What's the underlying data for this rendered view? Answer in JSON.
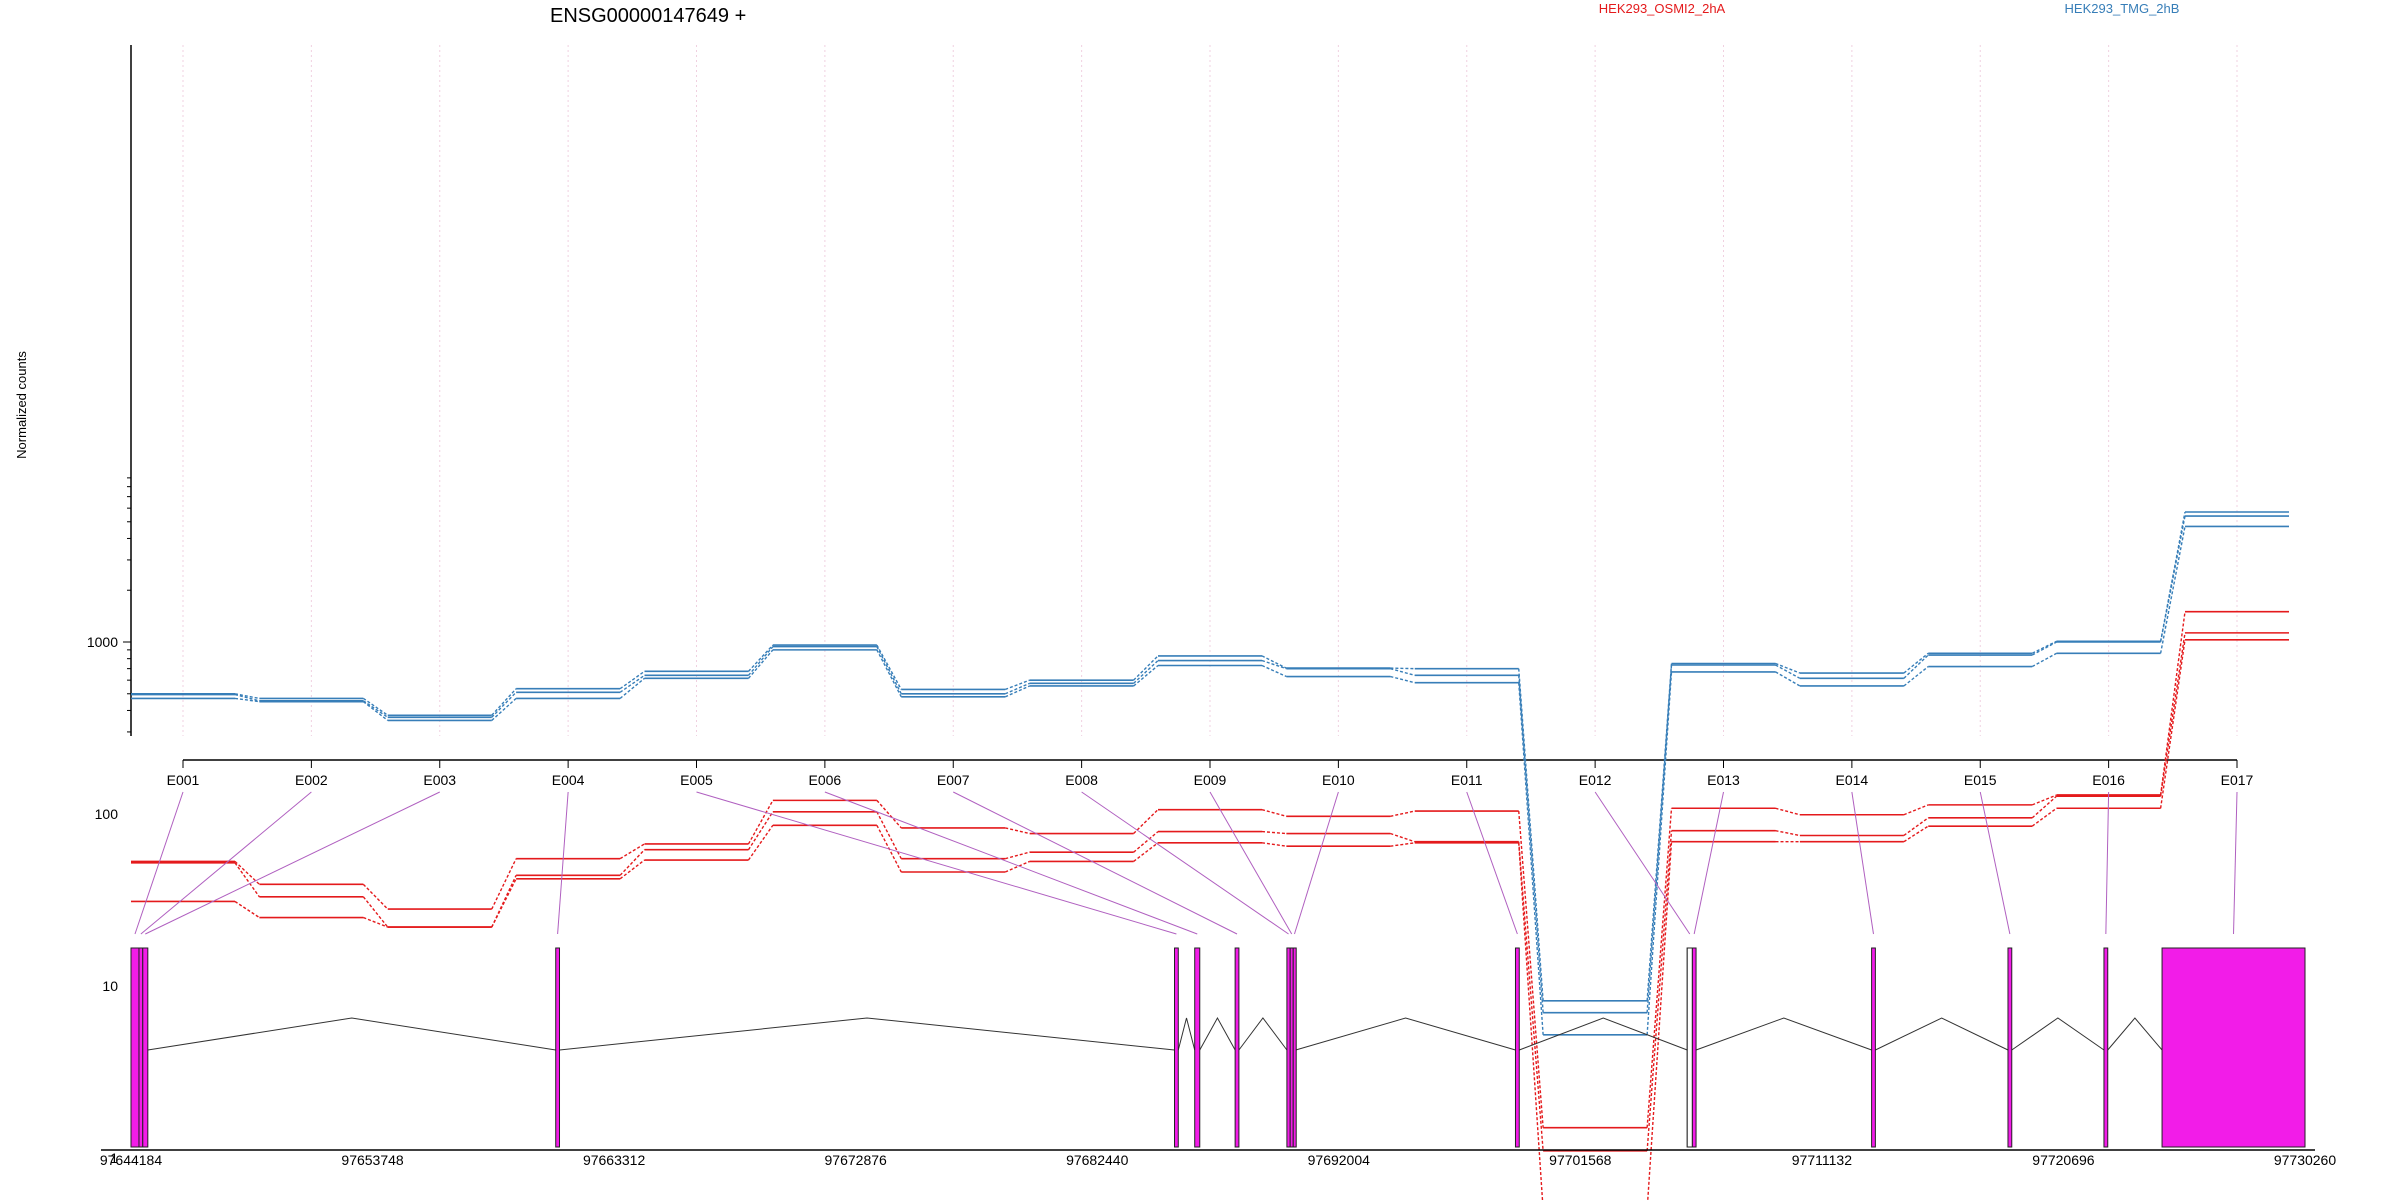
{
  "chart_data": {
    "type": "line",
    "title": "ENSG00000147649 +",
    "ylabel": "Normalized counts",
    "y_scale": "log",
    "ylim": [
      0.4,
      8000
    ],
    "y_ticks": [
      1,
      10,
      100,
      1000
    ],
    "y_tick_labels": [
      "1",
      "10",
      "100",
      "1000"
    ],
    "grid": "vertical dotted",
    "legend": "top",
    "categories": [
      "E001",
      "E002",
      "E003",
      "E004",
      "E005",
      "E006",
      "E007",
      "E008",
      "E009",
      "E010",
      "E011",
      "E012",
      "E013",
      "E014",
      "E015",
      "E016",
      "E017"
    ],
    "series": [
      {
        "name": "HEK293_OSMI2_2hA",
        "group": "HEK293_OSMI2_2hA",
        "color": "#e41a1c",
        "values": [
          53,
          39,
          28,
          55,
          67,
          120,
          83,
          77,
          106,
          97,
          104,
          1.5,
          108,
          99,
          113,
          129,
          1500
        ]
      },
      {
        "name": "",
        "group": "HEK293_OSMI2_2hA",
        "color": "#e41a1c",
        "values": [
          52,
          33,
          22,
          44,
          62,
          103,
          55,
          60,
          79,
          77,
          69,
          1.1,
          80,
          75,
          95,
          127,
          1130
        ]
      },
      {
        "name": "",
        "group": "HEK293_OSMI2_2hA",
        "color": "#e41a1c",
        "values": [
          31,
          25,
          22,
          42,
          54,
          86,
          46,
          53,
          68,
          65,
          68,
          0.5,
          69,
          69,
          85,
          108,
          1030
        ]
      },
      {
        "name": "HEK293_TMG_2hB",
        "group": "HEK293_TMG_2hB",
        "color": "#377eb8",
        "values": [
          500,
          470,
          375,
          535,
          675,
          960,
          530,
          600,
          830,
          705,
          700,
          8.2,
          750,
          660,
          860,
          1010,
          5700
        ]
      },
      {
        "name": "",
        "group": "HEK293_TMG_2hB",
        "color": "#377eb8",
        "values": [
          495,
          455,
          365,
          510,
          640,
          940,
          500,
          575,
          780,
          700,
          640,
          7.0,
          735,
          615,
          840,
          1000,
          5400
        ]
      },
      {
        "name": "",
        "group": "HEK293_TMG_2hB",
        "color": "#377eb8",
        "values": [
          470,
          450,
          350,
          470,
          615,
          900,
          480,
          555,
          730,
          630,
          580,
          5.2,
          670,
          555,
          720,
          860,
          4700
        ]
      }
    ],
    "legend_entries": [
      {
        "label": "HEK293_OSMI2_2hA",
        "color": "#e41a1c"
      },
      {
        "label": "HEK293_TMG_2hB",
        "color": "#377eb8"
      }
    ],
    "gene_model": {
      "coordinate_ticks": [
        97644184,
        97653748,
        97663312,
        97672876,
        97682440,
        97692004,
        97701568,
        97711132,
        97720696,
        97730260
      ],
      "coordinate_tick_labels": [
        "97644184",
        "97653748",
        "97663312",
        "97672876",
        "97682440",
        "97692004",
        "97701568",
        "97711132",
        "97720696",
        "97730260"
      ],
      "exon_fill": "#f21ce8",
      "connector_color": "#b060c0",
      "exons": [
        {
          "id": "E001",
          "start": 97644184,
          "end": 97644500
        },
        {
          "id": "E002",
          "start": 97644500,
          "end": 97644650
        },
        {
          "id": "E003",
          "start": 97644650,
          "end": 97644850
        },
        {
          "id": "E004",
          "start": 97661000,
          "end": 97661150
        },
        {
          "id": "E005",
          "start": 97685500,
          "end": 97685650
        },
        {
          "id": "E006",
          "start": 97686300,
          "end": 97686500
        },
        {
          "id": "E007",
          "start": 97687900,
          "end": 97688050
        },
        {
          "id": "E008",
          "start": 97689950,
          "end": 97690080
        },
        {
          "id": "E009",
          "start": 97690080,
          "end": 97690200
        },
        {
          "id": "E010",
          "start": 97690200,
          "end": 97690300
        },
        {
          "id": "E011",
          "start": 97699000,
          "end": 97699150
        },
        {
          "id": "E012",
          "start": 97705800,
          "end": 97706000
        },
        {
          "id": "E013",
          "start": 97706000,
          "end": 97706150
        },
        {
          "id": "E014",
          "start": 97713100,
          "end": 97713250
        },
        {
          "id": "E015",
          "start": 97718500,
          "end": 97718650
        },
        {
          "id": "E016",
          "start": 97722300,
          "end": 97722450
        },
        {
          "id": "E017",
          "start": 97724600,
          "end": 97730260
        }
      ],
      "unshaded_exon": {
        "start": 97705800,
        "end": 97706000
      }
    }
  }
}
